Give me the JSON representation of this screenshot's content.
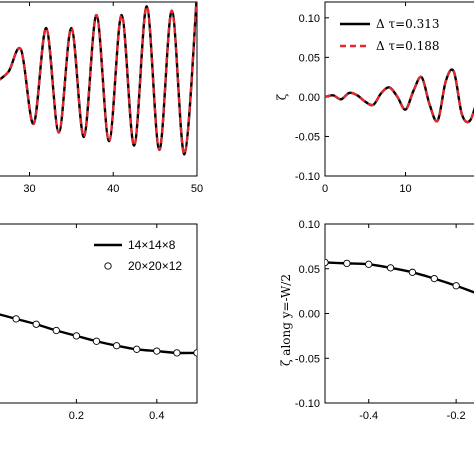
{
  "chart_data": [
    {
      "type": "line",
      "panel": "top-left",
      "xlim": [
        26,
        50
      ],
      "ylim": [
        -0.1,
        0.1
      ],
      "x_ticks": [
        "30",
        "40",
        "50"
      ],
      "x_tick_values": [
        30,
        40,
        50
      ],
      "series": [
        {
          "color": "#000000",
          "dash": false,
          "x": [
            26.0,
            27.5,
            29.0,
            30.5,
            32.0,
            33.5,
            35.0,
            36.5,
            38.0,
            39.5,
            41.0,
            42.5,
            44.0,
            45.5,
            47.0,
            48.5,
            50.0
          ],
          "y": [
            0.008,
            0.02,
            0.045,
            -0.04,
            0.07,
            -0.05,
            0.07,
            -0.055,
            0.085,
            -0.06,
            0.085,
            -0.065,
            0.095,
            -0.07,
            0.09,
            -0.075,
            0.11
          ]
        },
        {
          "color": "#e8262b",
          "dash": true,
          "x": [
            26.0,
            27.5,
            29.0,
            30.5,
            32.0,
            33.5,
            35.0,
            36.5,
            38.0,
            39.5,
            41.0,
            42.5,
            44.0,
            45.5,
            47.0,
            48.5,
            50.0
          ],
          "y": [
            0.008,
            0.02,
            0.045,
            -0.04,
            0.07,
            -0.05,
            0.07,
            -0.055,
            0.085,
            -0.06,
            0.085,
            -0.065,
            0.095,
            -0.07,
            0.09,
            -0.075,
            0.11
          ]
        }
      ]
    },
    {
      "type": "line",
      "panel": "top-right",
      "ylabel": "ζ",
      "xlim": [
        0,
        19
      ],
      "ylim": [
        -0.1,
        0.12
      ],
      "x_ticks": [
        "0",
        "10"
      ],
      "x_tick_values": [
        0,
        10
      ],
      "y_ticks": [
        "0.10",
        "0.05",
        "0.00",
        "-0.05",
        "-0.10"
      ],
      "y_tick_values": [
        0.1,
        0.05,
        0.0,
        -0.05,
        -0.1
      ],
      "legend": [
        "Δ τ=0.313",
        "Δ τ=0.188"
      ],
      "legend_position": "top-right",
      "series": [
        {
          "name": "Δ τ=0.313",
          "color": "#000000",
          "dash": false,
          "x": [
            0,
            1,
            2,
            3,
            4,
            5,
            6,
            7,
            8,
            9,
            10,
            11,
            12,
            13,
            14,
            15,
            16,
            17,
            18,
            19
          ],
          "y": [
            0.0,
            0.002,
            -0.003,
            0.005,
            0.002,
            -0.006,
            -0.01,
            0.005,
            0.012,
            0.0,
            -0.016,
            0.008,
            0.025,
            -0.01,
            -0.03,
            0.02,
            0.032,
            -0.022,
            -0.03,
            0.0
          ]
        },
        {
          "name": "Δ τ=0.188",
          "color": "#e8262b",
          "dash": true,
          "x": [
            0,
            1,
            2,
            3,
            4,
            5,
            6,
            7,
            8,
            9,
            10,
            11,
            12,
            13,
            14,
            15,
            16,
            17,
            18,
            19
          ],
          "y": [
            0.0,
            0.002,
            -0.003,
            0.005,
            0.002,
            -0.006,
            -0.01,
            0.005,
            0.012,
            0.0,
            -0.016,
            0.008,
            0.025,
            -0.01,
            -0.03,
            0.02,
            0.032,
            -0.022,
            -0.03,
            0.0
          ]
        }
      ]
    },
    {
      "type": "line",
      "panel": "bottom-left",
      "xlim": [
        0.0,
        0.5
      ],
      "ylim": [
        -0.1,
        0.1
      ],
      "x_ticks": [
        "0.2",
        "0.4"
      ],
      "x_tick_values": [
        0.2,
        0.4
      ],
      "legend": [
        "14×14×8",
        "20×20×12"
      ],
      "legend_position": "top-right",
      "series": [
        {
          "name": "14×14×8",
          "color": "#000000",
          "style": "line",
          "x": [
            0.0,
            0.05,
            0.1,
            0.15,
            0.2,
            0.25,
            0.3,
            0.35,
            0.4,
            0.45,
            0.5
          ],
          "y": [
            0.0,
            -0.006,
            -0.012,
            -0.019,
            -0.025,
            -0.031,
            -0.036,
            -0.04,
            -0.042,
            -0.044,
            -0.044
          ]
        },
        {
          "name": "20×20×12",
          "color": "#000000",
          "style": "markers",
          "x": [
            0.0,
            0.05,
            0.1,
            0.15,
            0.2,
            0.25,
            0.3,
            0.35,
            0.4,
            0.45,
            0.5
          ],
          "y": [
            0.0,
            -0.006,
            -0.012,
            -0.019,
            -0.025,
            -0.031,
            -0.036,
            -0.04,
            -0.042,
            -0.044,
            -0.044
          ]
        }
      ]
    },
    {
      "type": "line",
      "panel": "bottom-right",
      "ylabel": "ζ along y=-W/2",
      "xlim": [
        -0.5,
        -0.15
      ],
      "ylim": [
        -0.1,
        0.1
      ],
      "x_ticks": [
        "-0.4",
        "-0.2"
      ],
      "x_tick_values": [
        -0.4,
        -0.2
      ],
      "y_ticks": [
        "0.10",
        "0.05",
        "0.00",
        "-0.05",
        "-0.10"
      ],
      "y_tick_values": [
        0.1,
        0.05,
        0.0,
        -0.05,
        -0.1
      ],
      "series": [
        {
          "color": "#000000",
          "style": "line",
          "x": [
            -0.5,
            -0.45,
            -0.4,
            -0.35,
            -0.3,
            -0.25,
            -0.2,
            -0.15
          ],
          "y": [
            0.057,
            0.056,
            0.055,
            0.051,
            0.046,
            0.039,
            0.031,
            0.022
          ]
        },
        {
          "color": "#000000",
          "style": "markers",
          "x": [
            -0.5,
            -0.45,
            -0.4,
            -0.35,
            -0.3,
            -0.25,
            -0.2,
            -0.15
          ],
          "y": [
            0.057,
            0.056,
            0.055,
            0.051,
            0.046,
            0.039,
            0.031,
            0.022
          ]
        }
      ]
    }
  ]
}
